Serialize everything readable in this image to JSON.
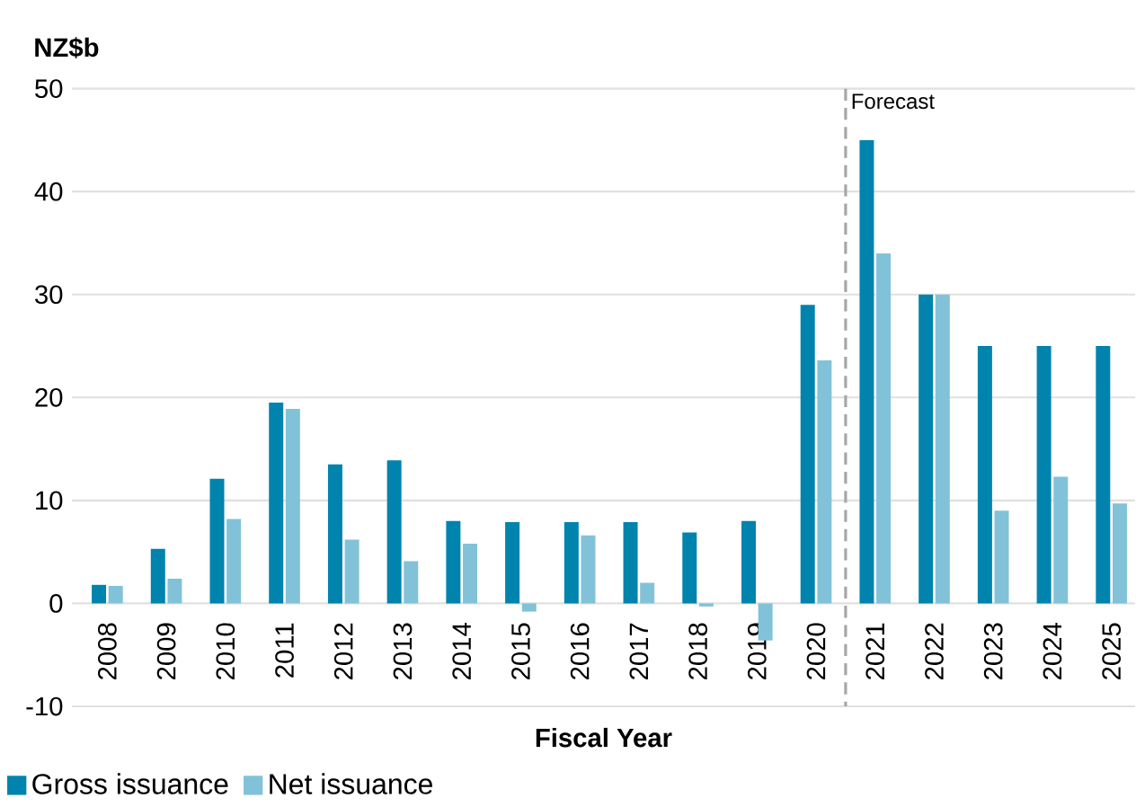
{
  "chart_data": {
    "type": "bar",
    "ylabel": "NZ$b",
    "xlabel": "Fiscal Year",
    "categories": [
      "2008",
      "2009",
      "2010",
      "2011",
      "2012",
      "2013",
      "2014",
      "2015",
      "2016",
      "2017",
      "2018",
      "2019",
      "2020",
      "2021",
      "2022",
      "2023",
      "2024",
      "2025"
    ],
    "series": [
      {
        "name": "Gross issuance",
        "color": "#0083ad",
        "values": [
          1.8,
          5.3,
          12.1,
          19.5,
          13.5,
          13.9,
          8.0,
          7.9,
          7.9,
          7.9,
          6.9,
          8.0,
          29,
          45,
          30,
          25,
          25,
          25
        ]
      },
      {
        "name": "Net issuance",
        "color": "#82c2d8",
        "values": [
          1.7,
          2.4,
          8.2,
          18.9,
          6.2,
          4.1,
          5.8,
          -0.8,
          6.6,
          2.0,
          -0.3,
          -3.6,
          23.6,
          34,
          30,
          9,
          12.3,
          9.7
        ]
      }
    ],
    "ylim": [
      -10,
      50
    ],
    "yticks": [
      -10,
      0,
      10,
      20,
      30,
      40,
      50
    ],
    "grid": "y",
    "legend": "bottom left",
    "ref_lines": [
      {
        "axis": "x",
        "value": "2021",
        "label": "Forecast",
        "color": "#a6a6a6",
        "line_style": "dashed"
      }
    ]
  }
}
